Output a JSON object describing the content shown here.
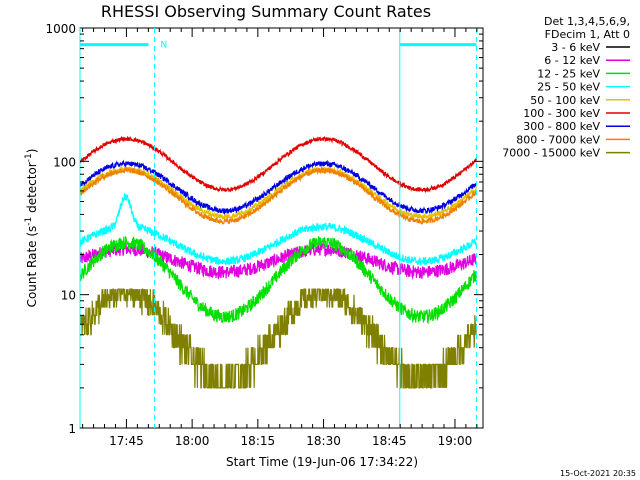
{
  "chart_data": {
    "type": "line",
    "title": "RHESSI Observing Summary Count Rates",
    "xlabel": "Start Time (19-Jun-06 17:34:22)",
    "ylabel_main": "Count Rate (s",
    "ylabel_sup1": "-1",
    "ylabel_mid": " detector",
    "ylabel_sup2": "-1",
    "ylabel_end": ")",
    "yscale": "log",
    "ylim": [
      1,
      1000
    ],
    "y_ticks": [
      {
        "value": 1,
        "label": "1"
      },
      {
        "value": 10,
        "label": "10"
      },
      {
        "value": 100,
        "label": "100"
      },
      {
        "value": 1000,
        "label": "1000"
      }
    ],
    "xlim_minutes": [
      0,
      92
    ],
    "x_ticks": [
      {
        "minute": 10.6,
        "label": "17:45"
      },
      {
        "minute": 25.6,
        "label": "18:00"
      },
      {
        "minute": 40.6,
        "label": "18:15"
      },
      {
        "minute": 55.6,
        "label": "18:30"
      },
      {
        "minute": 70.6,
        "label": "18:45"
      },
      {
        "minute": 85.6,
        "label": "19:00"
      }
    ],
    "legend_header": [
      "Det 1,3,4,5,6,9,",
      "FDecim 1, Att 0"
    ],
    "legend_placement": "right",
    "series": [
      {
        "name": "3 - 6 keV",
        "color": "#000000",
        "visible": false
      },
      {
        "name": "6 - 12 keV",
        "color": "#e000e0",
        "visible": true
      },
      {
        "name": "12 - 25 keV",
        "color": "#00e000",
        "visible": true
      },
      {
        "name": "25 - 50 keV",
        "color": "#00ffff",
        "visible": true
      },
      {
        "name": "50 - 100 keV",
        "color": "#e0c000",
        "visible": true
      },
      {
        "name": "100 - 300 keV",
        "color": "#e00000",
        "visible": true
      },
      {
        "name": "300 - 800 keV",
        "color": "#0000e0",
        "visible": true
      },
      {
        "name": "800 - 7000 keV",
        "color": "#f08000",
        "visible": true
      },
      {
        "name": "7000 - 15000 keV",
        "color": "#808000",
        "visible": true
      }
    ],
    "night_intervals_minutes": [
      [
        0,
        17
      ],
      [
        73,
        90.5
      ]
    ],
    "flag_bar": {
      "start": 0,
      "end": 17,
      "label": "N"
    },
    "flag_bar2": {
      "start": 73,
      "end": 90.5
    },
    "bar_y_value": 750
  },
  "footer_timestamp": "15-Oct-2021 20:35"
}
